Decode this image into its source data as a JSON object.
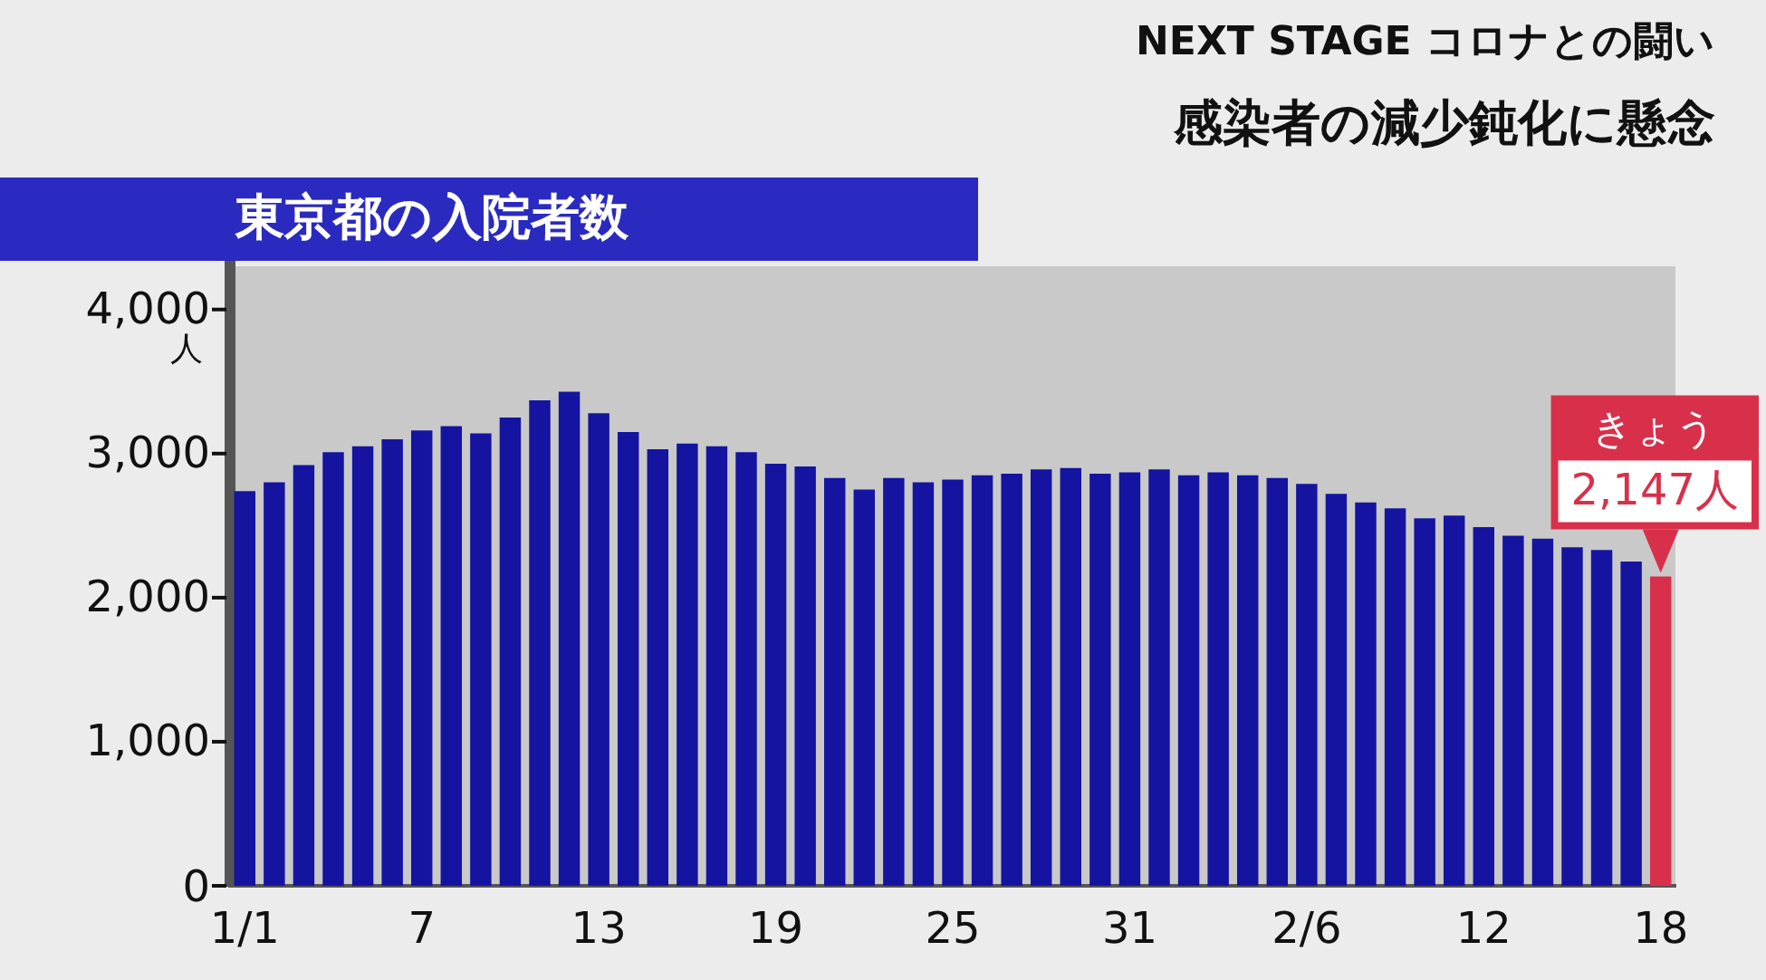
{
  "chart_data": {
    "type": "bar",
    "title": "東京都の入院者数",
    "subtitle": "感染者の減少鈍化に懸念",
    "annotations": [
      "NEXT STAGE コロナとの闘い",
      "きょう"
    ],
    "ylabel": "人",
    "categories": [
      "1/1",
      null,
      null,
      null,
      null,
      null,
      "7",
      null,
      null,
      null,
      null,
      null,
      "13",
      null,
      null,
      null,
      null,
      null,
      "19",
      null,
      null,
      null,
      null,
      null,
      "25",
      null,
      null,
      null,
      null,
      null,
      "31",
      null,
      null,
      null,
      null,
      null,
      "2/6",
      null,
      null,
      null,
      null,
      null,
      "12",
      null,
      null,
      null,
      null,
      null,
      "18"
    ],
    "values": [
      2740,
      2800,
      2920,
      3010,
      3050,
      3100,
      3160,
      3190,
      3140,
      3250,
      3370,
      3430,
      3280,
      3150,
      3030,
      3070,
      3050,
      3010,
      2930,
      2910,
      2830,
      2750,
      2830,
      2800,
      2820,
      2850,
      2860,
      2890,
      2900,
      2860,
      2870,
      2890,
      2850,
      2870,
      2850,
      2830,
      2790,
      2720,
      2660,
      2620,
      2550,
      2570,
      2490,
      2430,
      2410,
      2350,
      2330,
      2250,
      2147
    ],
    "colors": [
      "#1414a0",
      "#1414a0",
      "#1414a0",
      "#1414a0",
      "#1414a0",
      "#1414a0",
      "#1414a0",
      "#1414a0",
      "#1414a0",
      "#1414a0",
      "#1414a0",
      "#1414a0",
      "#1414a0",
      "#1414a0",
      "#1414a0",
      "#1414a0",
      "#1414a0",
      "#1414a0",
      "#1414a0",
      "#1414a0",
      "#1414a0",
      "#1414a0",
      "#1414a0",
      "#1414a0",
      "#1414a0",
      "#1414a0",
      "#1414a0",
      "#1414a0",
      "#1414a0",
      "#1414a0",
      "#1414a0",
      "#1414a0",
      "#1414a0",
      "#1414a0",
      "#1414a0",
      "#1414a0",
      "#1414a0",
      "#1414a0",
      "#1414a0",
      "#1414a0",
      "#1414a0",
      "#1414a0",
      "#1414a0",
      "#1414a0",
      "#1414a0",
      "#1414a0",
      "#1414a0",
      "#1414a0",
      "#d8304a"
    ],
    "value_labels": [
      null,
      null,
      null,
      null,
      null,
      null,
      null,
      null,
      null,
      null,
      null,
      null,
      null,
      null,
      null,
      null,
      null,
      null,
      null,
      null,
      null,
      null,
      null,
      null,
      null,
      null,
      null,
      null,
      null,
      null,
      null,
      null,
      null,
      null,
      null,
      null,
      null,
      null,
      null,
      null,
      null,
      null,
      null,
      null,
      null,
      null,
      null,
      null,
      "2,147人"
    ],
    "ylim": [
      0,
      4300
    ],
    "yticks": [
      {
        "value": 0,
        "label": "0"
      },
      {
        "value": 1000,
        "label": "1,000"
      },
      {
        "value": 2000,
        "label": "2,000"
      },
      {
        "value": 3000,
        "label": "3,000"
      },
      {
        "value": 4000,
        "label": "4,000"
      }
    ],
    "grid": false,
    "legend": false
  }
}
